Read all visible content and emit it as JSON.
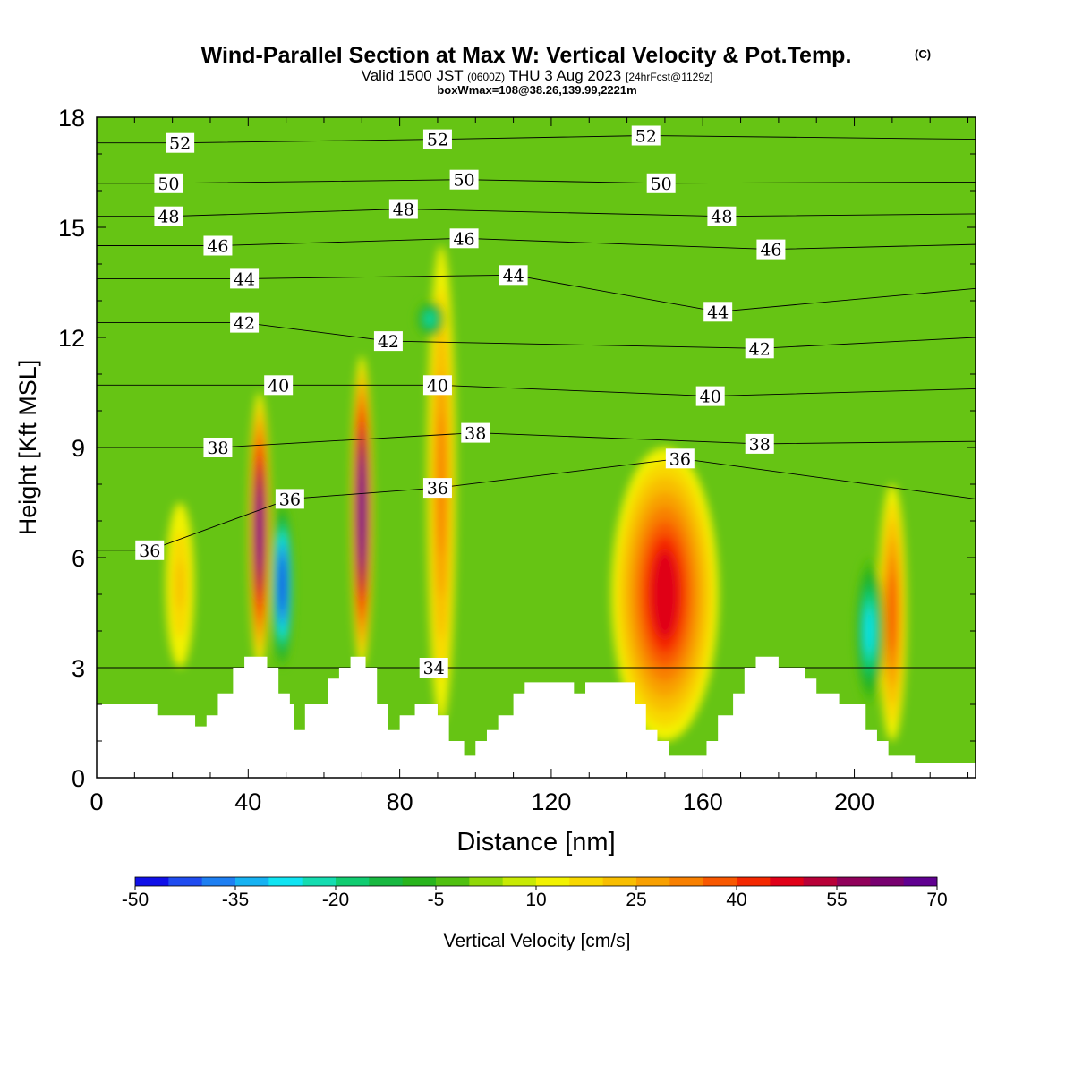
{
  "title": {
    "main": "Wind-Parallel Section at Max W: Vertical Velocity & Pot.Temp.",
    "copyright": "(C)",
    "valid_a": "Valid 1500 JST",
    "valid_b": "(0600Z)",
    "valid_c": "THU 3 Aug 2023",
    "valid_d": "[24hrFcst@1129z]",
    "box": "boxWmax=108@38.26,139.99,2221m"
  },
  "chart_data": {
    "type": "heatmap",
    "title": "Wind-Parallel Section at Max W: Vertical Velocity & Pot.Temp.",
    "xlabel": "Distance [nm]",
    "ylabel": "Height [Kft MSL]",
    "xlim": [
      0,
      232
    ],
    "ylim": [
      0,
      18
    ],
    "x_ticks": [
      0,
      40,
      80,
      120,
      160,
      200
    ],
    "y_ticks": [
      0,
      3,
      6,
      9,
      12,
      15,
      18
    ],
    "colorbar": {
      "label": "Vertical Velocity [cm/s]",
      "levels": [
        -50,
        -45,
        -40,
        -35,
        -30,
        -25,
        -20,
        -15,
        -10,
        -5,
        0,
        5,
        10,
        15,
        20,
        25,
        30,
        35,
        40,
        45,
        50,
        55,
        60,
        65,
        70
      ],
      "tick_labels": [
        "-50",
        "-35",
        "-20",
        "-5",
        "10",
        "25",
        "40",
        "55",
        "70"
      ],
      "colors": [
        "#1010e8",
        "#1f4cf0",
        "#1e7ff2",
        "#16b2f2",
        "#10e4f2",
        "#14dcb0",
        "#10cc70",
        "#18b840",
        "#28b41c",
        "#50c010",
        "#90d808",
        "#c8ea04",
        "#f2f200",
        "#f8d800",
        "#f8be00",
        "#f8a000",
        "#f88000",
        "#f85800",
        "#f42800",
        "#e00018",
        "#b80038",
        "#90005a",
        "#780070",
        "#600090"
      ]
    },
    "wind_contours": {
      "name": "Vertical Velocity [cm/s]",
      "features": [
        {
          "x": 43,
          "z_min": 3.0,
          "z_max": 10.5,
          "w_max": 65
        },
        {
          "x": 49,
          "z_min": 3.0,
          "z_max": 7.5,
          "w_min": -50
        },
        {
          "x": 70,
          "z_min": 3.0,
          "z_max": 11.5,
          "w_max": 70
        },
        {
          "x": 91,
          "z_min": 1.5,
          "z_max": 14.5,
          "w_max": 30
        },
        {
          "x": 88,
          "z_min": 12.0,
          "z_max": 13.0,
          "w_min": -25
        },
        {
          "x": 150,
          "z_min": 1.0,
          "z_max": 9.0,
          "w_max": 45
        },
        {
          "x": 210,
          "z_min": 1.0,
          "z_max": 8.0,
          "w_max": 35
        },
        {
          "x": 204,
          "z_min": 2.0,
          "z_max": 6.0,
          "w_min": -30
        },
        {
          "x": 22,
          "z_min": 3.0,
          "z_max": 7.5,
          "w_max": 20
        }
      ]
    },
    "potential_temperature_contour_labels": [
      {
        "x": 22,
        "z": 17.3,
        "label": "52"
      },
      {
        "x": 90,
        "z": 17.4,
        "label": "52"
      },
      {
        "x": 145,
        "z": 17.5,
        "label": "52"
      },
      {
        "x": 19,
        "z": 16.2,
        "label": "50"
      },
      {
        "x": 97,
        "z": 16.3,
        "label": "50"
      },
      {
        "x": 149,
        "z": 16.2,
        "label": "50"
      },
      {
        "x": 19,
        "z": 15.3,
        "label": "48"
      },
      {
        "x": 81,
        "z": 15.5,
        "label": "48"
      },
      {
        "x": 165,
        "z": 15.3,
        "label": "48"
      },
      {
        "x": 32,
        "z": 14.5,
        "label": "46"
      },
      {
        "x": 97,
        "z": 14.7,
        "label": "46"
      },
      {
        "x": 178,
        "z": 14.4,
        "label": "46"
      },
      {
        "x": 39,
        "z": 13.6,
        "label": "44"
      },
      {
        "x": 110,
        "z": 13.7,
        "label": "44"
      },
      {
        "x": 164,
        "z": 12.7,
        "label": "44"
      },
      {
        "x": 39,
        "z": 12.4,
        "label": "42"
      },
      {
        "x": 77,
        "z": 11.9,
        "label": "42"
      },
      {
        "x": 175,
        "z": 11.7,
        "label": "42"
      },
      {
        "x": 48,
        "z": 10.7,
        "label": "40"
      },
      {
        "x": 90,
        "z": 10.7,
        "label": "40"
      },
      {
        "x": 162,
        "z": 10.4,
        "label": "40"
      },
      {
        "x": 32,
        "z": 9.0,
        "label": "38"
      },
      {
        "x": 100,
        "z": 9.4,
        "label": "38"
      },
      {
        "x": 175,
        "z": 9.1,
        "label": "38"
      },
      {
        "x": 51,
        "z": 7.6,
        "label": "36"
      },
      {
        "x": 90,
        "z": 7.9,
        "label": "36"
      },
      {
        "x": 154,
        "z": 8.7,
        "label": "36"
      },
      {
        "x": 14,
        "z": 6.2,
        "label": "36"
      },
      {
        "x": 89,
        "z": 3.0,
        "label": "34"
      }
    ],
    "terrain_kft": [
      [
        0,
        2.0
      ],
      [
        16,
        2.0
      ],
      [
        16,
        1.7
      ],
      [
        26,
        1.7
      ],
      [
        26,
        1.4
      ],
      [
        29,
        1.4
      ],
      [
        29,
        1.7
      ],
      [
        32,
        1.7
      ],
      [
        32,
        2.3
      ],
      [
        36,
        2.3
      ],
      [
        36,
        3.0
      ],
      [
        39,
        3.0
      ],
      [
        39,
        3.3
      ],
      [
        45,
        3.3
      ],
      [
        45,
        3.0
      ],
      [
        48,
        3.0
      ],
      [
        48,
        2.3
      ],
      [
        51,
        2.3
      ],
      [
        51,
        2.0
      ],
      [
        52,
        2.0
      ],
      [
        52,
        1.3
      ],
      [
        55,
        1.3
      ],
      [
        55,
        2.0
      ],
      [
        61,
        2.0
      ],
      [
        61,
        2.7
      ],
      [
        64,
        2.7
      ],
      [
        64,
        3.0
      ],
      [
        67,
        3.0
      ],
      [
        67,
        3.3
      ],
      [
        71,
        3.3
      ],
      [
        71,
        3.0
      ],
      [
        74,
        3.0
      ],
      [
        74,
        2.0
      ],
      [
        77,
        2.0
      ],
      [
        77,
        1.3
      ],
      [
        80,
        1.3
      ],
      [
        80,
        1.7
      ],
      [
        84,
        1.7
      ],
      [
        84,
        2.0
      ],
      [
        90,
        2.0
      ],
      [
        90,
        1.7
      ],
      [
        93,
        1.7
      ],
      [
        93,
        1.0
      ],
      [
        97,
        1.0
      ],
      [
        97,
        0.6
      ],
      [
        100,
        0.6
      ],
      [
        100,
        1.0
      ],
      [
        103,
        1.0
      ],
      [
        103,
        1.3
      ],
      [
        106,
        1.3
      ],
      [
        106,
        1.7
      ],
      [
        110,
        1.7
      ],
      [
        110,
        2.3
      ],
      [
        113,
        2.3
      ],
      [
        113,
        2.6
      ],
      [
        126,
        2.6
      ],
      [
        126,
        2.3
      ],
      [
        129,
        2.3
      ],
      [
        129,
        2.6
      ],
      [
        142,
        2.6
      ],
      [
        142,
        2.0
      ],
      [
        145,
        2.0
      ],
      [
        145,
        1.3
      ],
      [
        148,
        1.3
      ],
      [
        148,
        1.0
      ],
      [
        151,
        1.0
      ],
      [
        151,
        0.6
      ],
      [
        161,
        0.6
      ],
      [
        161,
        1.0
      ],
      [
        164,
        1.0
      ],
      [
        164,
        1.7
      ],
      [
        168,
        1.7
      ],
      [
        168,
        2.3
      ],
      [
        171,
        2.3
      ],
      [
        171,
        3.0
      ],
      [
        174,
        3.0
      ],
      [
        174,
        3.3
      ],
      [
        180,
        3.3
      ],
      [
        180,
        3.0
      ],
      [
        187,
        3.0
      ],
      [
        187,
        2.7
      ],
      [
        190,
        2.7
      ],
      [
        190,
        2.3
      ],
      [
        196,
        2.3
      ],
      [
        196,
        2.0
      ],
      [
        203,
        2.0
      ],
      [
        203,
        1.3
      ],
      [
        206,
        1.3
      ],
      [
        206,
        1.0
      ],
      [
        209,
        1.0
      ],
      [
        209,
        0.6
      ],
      [
        216,
        0.6
      ],
      [
        216,
        0.4
      ],
      [
        232,
        0.4
      ]
    ]
  }
}
